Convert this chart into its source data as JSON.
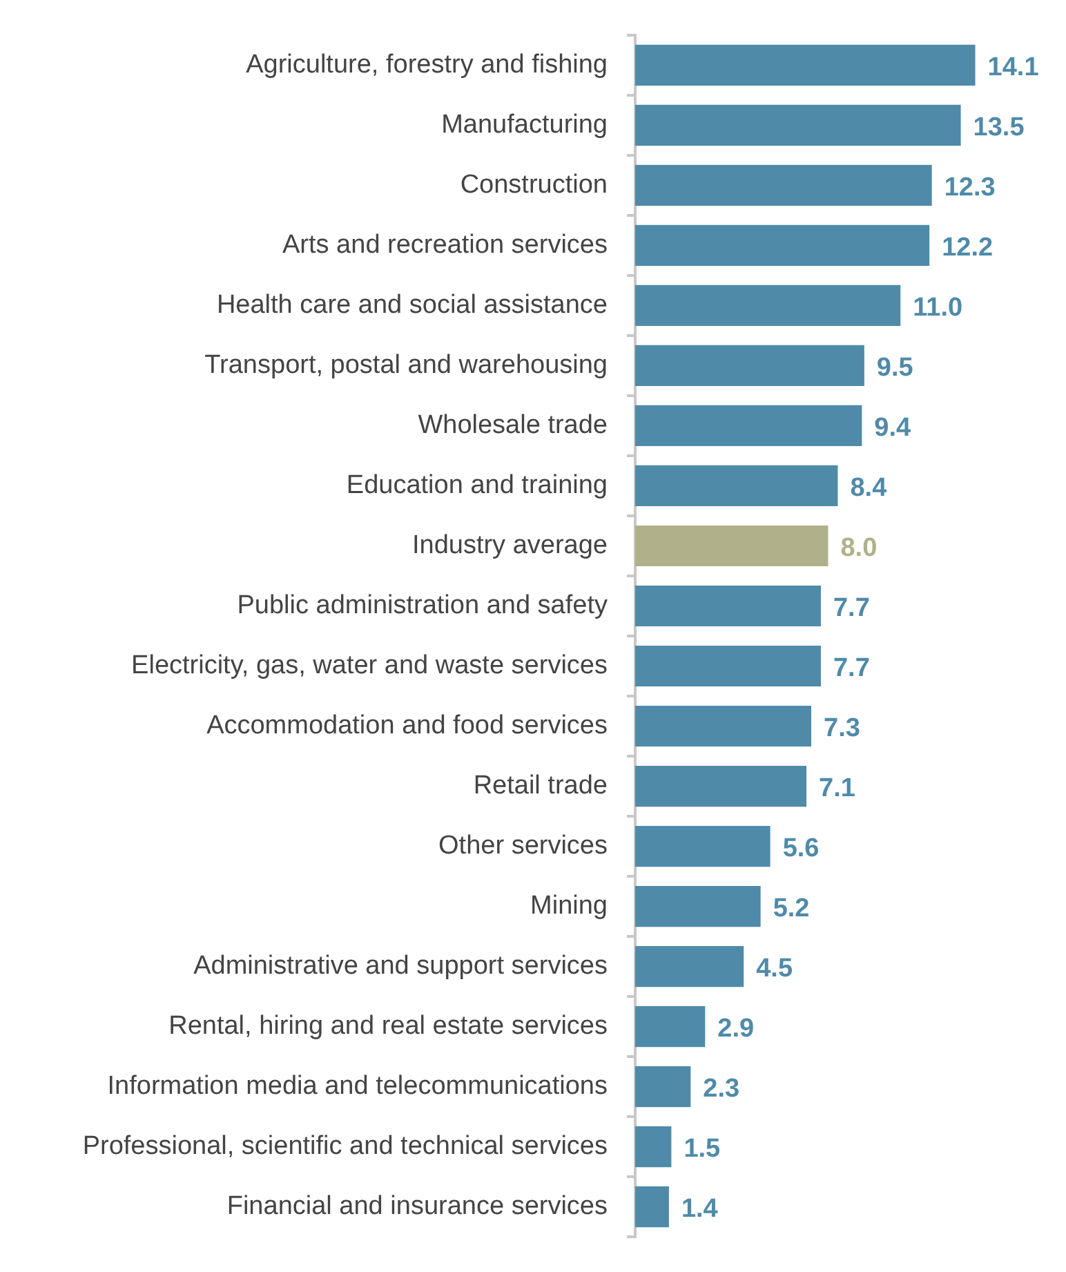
{
  "chart_data": {
    "type": "bar",
    "orientation": "horizontal",
    "legend": false,
    "value_labels": [
      "14.1",
      "13.5",
      "12.3",
      "12.2",
      "11.0",
      "9.5",
      "9.4",
      "8.4",
      "8.0",
      "7.7",
      "7.7",
      "7.3",
      "7.1",
      "5.6",
      "5.2",
      "4.5",
      "2.9",
      "2.3",
      "1.5",
      "1.4"
    ],
    "categories": [
      "Agriculture, forestry and fishing",
      "Manufacturing",
      "Construction",
      "Arts and recreation services",
      "Health care and social assistance",
      "Transport, postal and warehousing",
      "Wholesale trade",
      "Education and training",
      "Industry average",
      "Public administration and safety",
      "Electricity, gas, water and waste services",
      "Accommodation and food services",
      "Retail trade",
      "Other services",
      "Mining",
      "Administrative and support services",
      "Rental, hiring and real estate services",
      "Information media and telecommunications",
      "Professional, scientific and technical services",
      "Financial and insurance services"
    ],
    "values": [
      14.1,
      13.5,
      12.3,
      12.2,
      11.0,
      9.5,
      9.4,
      8.4,
      8.0,
      7.7,
      7.7,
      7.3,
      7.1,
      5.6,
      5.2,
      4.5,
      2.9,
      2.3,
      1.5,
      1.4
    ],
    "colors": [
      "#4f8aa9",
      "#4f8aa9",
      "#4f8aa9",
      "#4f8aa9",
      "#4f8aa9",
      "#4f8aa9",
      "#4f8aa9",
      "#4f8aa9",
      "#b0b18a",
      "#4f8aa9",
      "#4f8aa9",
      "#4f8aa9",
      "#4f8aa9",
      "#4f8aa9",
      "#4f8aa9",
      "#4f8aa9",
      "#4f8aa9",
      "#4f8aa9",
      "#4f8aa9",
      "#4f8aa9"
    ]
  }
}
